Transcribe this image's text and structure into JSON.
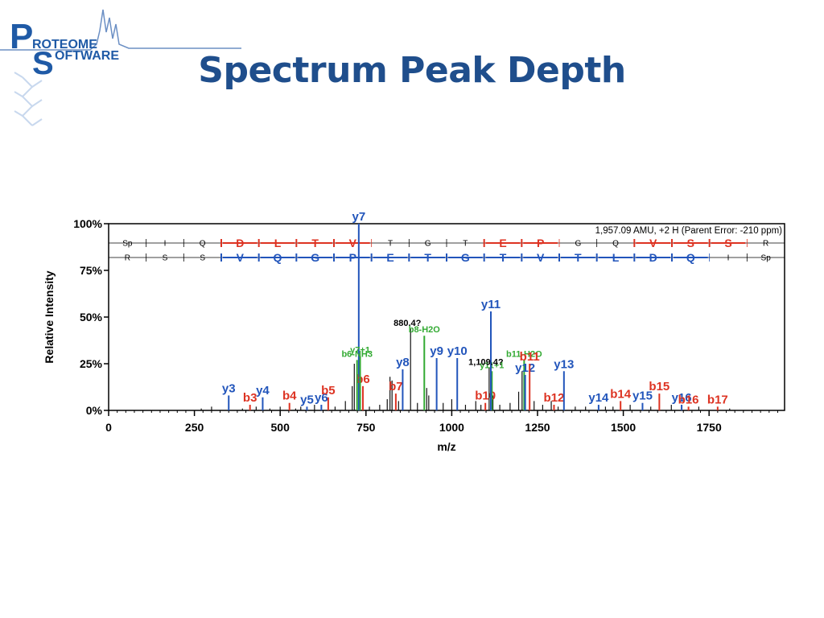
{
  "slide": {
    "title": "Spectrum Peak Depth",
    "logo": {
      "word1_rest": "ROTEOME",
      "word2_rest": "OFTWARE",
      "letter1": "P",
      "letter2": "S",
      "color": "#1f5aa6"
    }
  },
  "chart_data": {
    "type": "bar",
    "xlabel": "m/z",
    "ylabel": "Relative Intensity",
    "xlim": [
      0,
      1970
    ],
    "ylim": [
      0,
      100
    ],
    "xticks": [
      0,
      250,
      500,
      750,
      1000,
      1250,
      1500,
      1750
    ],
    "yticks": [
      0,
      25,
      50,
      75,
      100
    ],
    "ytick_labels": [
      "0%",
      "25%",
      "50%",
      "75%",
      "100%"
    ],
    "annotation": "1,957.09 AMU, +2 H (Parent Error: -210 ppm)",
    "colors": {
      "y": "#2255bb",
      "b": "#dd3322",
      "neutral": "#33aa33",
      "unlabeled": "#111111",
      "axis": "#000000"
    },
    "sequence_top": [
      {
        "aa": "Sp",
        "m": false
      },
      {
        "aa": "I",
        "m": false
      },
      {
        "aa": "Q",
        "m": false
      },
      {
        "aa": "D",
        "m": true
      },
      {
        "aa": "L",
        "m": true
      },
      {
        "aa": "T",
        "m": true
      },
      {
        "aa": "V",
        "m": true
      },
      {
        "aa": "T",
        "m": false
      },
      {
        "aa": "G",
        "m": false
      },
      {
        "aa": "T",
        "m": false
      },
      {
        "aa": "E",
        "m": true
      },
      {
        "aa": "P",
        "m": true
      },
      {
        "aa": "G",
        "m": false
      },
      {
        "aa": "Q",
        "m": false
      },
      {
        "aa": "V",
        "m": true
      },
      {
        "aa": "S",
        "m": true
      },
      {
        "aa": "S",
        "m": true
      },
      {
        "aa": "R",
        "m": false
      }
    ],
    "sequence_bottom": [
      {
        "aa": "R",
        "m": false
      },
      {
        "aa": "S",
        "m": false
      },
      {
        "aa": "S",
        "m": false
      },
      {
        "aa": "V",
        "m": true
      },
      {
        "aa": "Q",
        "m": true
      },
      {
        "aa": "G",
        "m": true
      },
      {
        "aa": "P",
        "m": true
      },
      {
        "aa": "E",
        "m": true
      },
      {
        "aa": "T",
        "m": true
      },
      {
        "aa": "G",
        "m": true
      },
      {
        "aa": "T",
        "m": true
      },
      {
        "aa": "V",
        "m": true
      },
      {
        "aa": "T",
        "m": true
      },
      {
        "aa": "L",
        "m": true
      },
      {
        "aa": "D",
        "m": true
      },
      {
        "aa": "Q",
        "m": true
      },
      {
        "aa": "I",
        "m": false
      },
      {
        "aa": "Sp",
        "m": false
      }
    ],
    "labeled_peaks": [
      {
        "label": "y3",
        "mz": 350,
        "i": 8,
        "type": "y"
      },
      {
        "label": "b3",
        "mz": 412,
        "i": 3,
        "type": "b"
      },
      {
        "label": "y4",
        "mz": 449,
        "i": 7,
        "type": "y"
      },
      {
        "label": "b4",
        "mz": 527,
        "i": 4,
        "type": "b"
      },
      {
        "label": "y5",
        "mz": 578,
        "i": 2,
        "type": "y"
      },
      {
        "label": "y6",
        "mz": 620,
        "i": 3,
        "type": "y"
      },
      {
        "label": "b5",
        "mz": 640,
        "i": 7,
        "type": "b"
      },
      {
        "label": "y7",
        "mz": 729,
        "i": 100,
        "type": "y"
      },
      {
        "label": "b6",
        "mz": 741,
        "i": 13,
        "type": "b"
      },
      {
        "label": "b6-NH3",
        "mz": 724,
        "i": 27,
        "type": "neutral"
      },
      {
        "label": "y7+1",
        "mz": 733,
        "i": 29,
        "type": "neutral"
      },
      {
        "label": "b7",
        "mz": 837,
        "i": 9,
        "type": "b"
      },
      {
        "label": "y8",
        "mz": 857,
        "i": 22,
        "type": "y"
      },
      {
        "label": "b8-H2O",
        "mz": 920,
        "i": 40,
        "type": "neutral"
      },
      {
        "label": "y9",
        "mz": 956,
        "i": 28,
        "type": "y"
      },
      {
        "label": "y10",
        "mz": 1016,
        "i": 28,
        "type": "y"
      },
      {
        "label": "b10",
        "mz": 1098,
        "i": 4,
        "type": "b"
      },
      {
        "label": "y11+1",
        "mz": 1117,
        "i": 21,
        "type": "neutral"
      },
      {
        "label": "y11",
        "mz": 1114,
        "i": 53,
        "type": "y"
      },
      {
        "label": "b11-H2O",
        "mz": 1211,
        "i": 27,
        "type": "neutral"
      },
      {
        "label": "y12",
        "mz": 1214,
        "i": 19,
        "type": "y"
      },
      {
        "label": "b11",
        "mz": 1227,
        "i": 25,
        "type": "b"
      },
      {
        "label": "b12",
        "mz": 1298,
        "i": 3,
        "type": "b"
      },
      {
        "label": "y13",
        "mz": 1327,
        "i": 21,
        "type": "y"
      },
      {
        "label": "y14",
        "mz": 1428,
        "i": 3,
        "type": "y"
      },
      {
        "label": "b14",
        "mz": 1492,
        "i": 5,
        "type": "b"
      },
      {
        "label": "y15",
        "mz": 1556,
        "i": 4,
        "type": "y"
      },
      {
        "label": "b15",
        "mz": 1605,
        "i": 9,
        "type": "b"
      },
      {
        "label": "y16",
        "mz": 1670,
        "i": 3,
        "type": "y"
      },
      {
        "label": "b16",
        "mz": 1690,
        "i": 2,
        "type": "b"
      },
      {
        "label": "b17",
        "mz": 1775,
        "i": 2,
        "type": "b"
      }
    ],
    "mass_labels": [
      {
        "label": "880.4?",
        "mz": 880,
        "i": 44
      },
      {
        "label": "1,109.4?",
        "mz": 1109,
        "i": 23
      }
    ],
    "unlabeled_peaks": [
      {
        "mz": 270,
        "i": 1
      },
      {
        "mz": 300,
        "i": 2
      },
      {
        "mz": 390,
        "i": 1
      },
      {
        "mz": 430,
        "i": 2
      },
      {
        "mz": 470,
        "i": 1
      },
      {
        "mz": 500,
        "i": 2
      },
      {
        "mz": 545,
        "i": 1
      },
      {
        "mz": 560,
        "i": 2
      },
      {
        "mz": 600,
        "i": 3
      },
      {
        "mz": 660,
        "i": 2
      },
      {
        "mz": 690,
        "i": 5
      },
      {
        "mz": 710,
        "i": 13
      },
      {
        "mz": 716,
        "i": 25
      },
      {
        "mz": 760,
        "i": 2
      },
      {
        "mz": 790,
        "i": 3
      },
      {
        "mz": 812,
        "i": 6
      },
      {
        "mz": 820,
        "i": 18
      },
      {
        "mz": 826,
        "i": 16
      },
      {
        "mz": 845,
        "i": 5
      },
      {
        "mz": 880,
        "i": 44
      },
      {
        "mz": 900,
        "i": 4
      },
      {
        "mz": 927,
        "i": 12
      },
      {
        "mz": 933,
        "i": 8
      },
      {
        "mz": 975,
        "i": 4
      },
      {
        "mz": 1000,
        "i": 6
      },
      {
        "mz": 1040,
        "i": 3
      },
      {
        "mz": 1070,
        "i": 5
      },
      {
        "mz": 1085,
        "i": 3
      },
      {
        "mz": 1109,
        "i": 23
      },
      {
        "mz": 1120,
        "i": 8
      },
      {
        "mz": 1140,
        "i": 3
      },
      {
        "mz": 1170,
        "i": 4
      },
      {
        "mz": 1195,
        "i": 10
      },
      {
        "mz": 1205,
        "i": 21
      },
      {
        "mz": 1240,
        "i": 5
      },
      {
        "mz": 1265,
        "i": 3
      },
      {
        "mz": 1290,
        "i": 5
      },
      {
        "mz": 1310,
        "i": 2
      },
      {
        "mz": 1360,
        "i": 2
      },
      {
        "mz": 1390,
        "i": 2
      },
      {
        "mz": 1448,
        "i": 2
      },
      {
        "mz": 1470,
        "i": 2
      },
      {
        "mz": 1520,
        "i": 3
      },
      {
        "mz": 1580,
        "i": 2
      },
      {
        "mz": 1640,
        "i": 3
      },
      {
        "mz": 1720,
        "i": 2
      },
      {
        "mz": 1810,
        "i": 1
      }
    ]
  }
}
